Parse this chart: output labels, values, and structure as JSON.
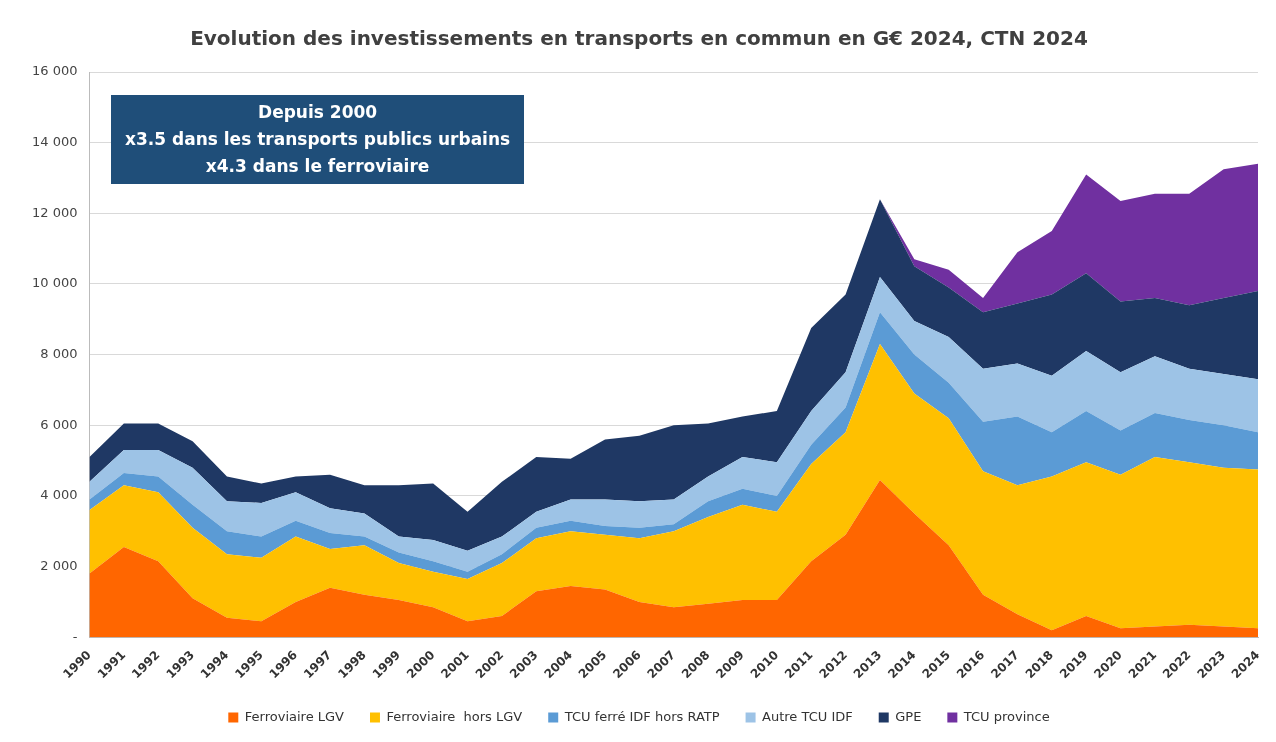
{
  "chart_data": {
    "type": "area",
    "title": "Evolution des investissements en transports en commun en G€ 2024, CTN 2024",
    "categories": [
      "1990",
      "1991",
      "1992",
      "1993",
      "1994",
      "1995",
      "1996",
      "1997",
      "1998",
      "1999",
      "2000",
      "2001",
      "2002",
      "2003",
      "2004",
      "2005",
      "2006",
      "2007",
      "2008",
      "2009",
      "2010",
      "2011",
      "2012",
      "2013",
      "2014",
      "2015",
      "2016",
      "2017",
      "2018",
      "2019",
      "2020",
      "2021",
      "2022",
      "2023",
      "2024"
    ],
    "stacked": true,
    "ylim": [
      0,
      16000
    ],
    "yticks": [
      {
        "value": 0,
        "label": "-"
      },
      {
        "value": 2000,
        "label": "2 000"
      },
      {
        "value": 4000,
        "label": "4 000"
      },
      {
        "value": 6000,
        "label": "6 000"
      },
      {
        "value": 8000,
        "label": "8 000"
      },
      {
        "value": 10000,
        "label": "10 000"
      },
      {
        "value": 12000,
        "label": "12 000"
      },
      {
        "value": 14000,
        "label": "14 000"
      },
      {
        "value": 16000,
        "label": "16 000"
      }
    ],
    "grid": "y",
    "legend": "bottom",
    "marker": "none",
    "annotations": [
      "Depuis 2000",
      "x3.5 dans les transports publics urbains",
      "x4.3 dans le ferroviaire"
    ],
    "series": [
      {
        "name": "Ferroviaire LGV",
        "color": "#ff6600",
        "values": [
          1800,
          2550,
          2150,
          1100,
          550,
          450,
          1000,
          1400,
          1200,
          1050,
          850,
          450,
          600,
          1300,
          1450,
          1350,
          1000,
          850,
          950,
          1050,
          1050,
          2150,
          2900,
          4450,
          3500,
          2600,
          1200,
          650,
          200,
          600,
          250,
          300,
          350,
          300,
          250
        ]
      },
      {
        "name": "Ferroviaire  hors LGV",
        "color": "#ffc000",
        "values": [
          1800,
          1750,
          1950,
          2000,
          1800,
          1800,
          1850,
          1100,
          1400,
          1050,
          1000,
          1200,
          1500,
          1500,
          1550,
          1550,
          1800,
          2150,
          2450,
          2700,
          2500,
          2750,
          2900,
          3850,
          3400,
          3600,
          3500,
          3650,
          4350,
          4350,
          4350,
          4800,
          4600,
          4500,
          4500
        ]
      },
      {
        "name": "TCU ferré IDF hors RATP",
        "color": "#5b9bd5",
        "values": [
          300,
          350,
          450,
          650,
          650,
          600,
          450,
          450,
          250,
          300,
          300,
          200,
          250,
          300,
          300,
          250,
          300,
          200,
          450,
          450,
          450,
          550,
          700,
          900,
          1100,
          1000,
          1400,
          1950,
          1250,
          1450,
          1250,
          1250,
          1200,
          1200,
          1050
        ]
      },
      {
        "name": "Autre TCU IDF",
        "color": "#9dc3e6",
        "values": [
          500,
          650,
          750,
          1050,
          850,
          950,
          800,
          700,
          650,
          450,
          600,
          600,
          500,
          450,
          600,
          750,
          750,
          700,
          700,
          900,
          950,
          950,
          1000,
          1000,
          950,
          1300,
          1500,
          1500,
          1600,
          1700,
          1650,
          1600,
          1450,
          1450,
          1500
        ]
      },
      {
        "name": "GPE",
        "color": "#1f3864",
        "values": [
          700,
          750,
          750,
          750,
          700,
          550,
          450,
          950,
          800,
          1450,
          1600,
          1100,
          1550,
          1550,
          1150,
          1700,
          1850,
          2100,
          1500,
          1150,
          1450,
          2350,
          2200,
          2200,
          1550,
          1400,
          1600,
          1700,
          2300,
          2200,
          2000,
          1650,
          1800,
          2150,
          2500
        ]
      },
      {
        "name": "TCU province",
        "color": "#7030a0",
        "values": [
          null,
          null,
          null,
          null,
          null,
          null,
          null,
          null,
          null,
          null,
          null,
          null,
          null,
          null,
          null,
          null,
          null,
          null,
          null,
          null,
          null,
          null,
          null,
          0,
          200,
          500,
          400,
          1450,
          1800,
          2800,
          2850,
          2950,
          3150,
          3650,
          3600
        ]
      }
    ]
  }
}
